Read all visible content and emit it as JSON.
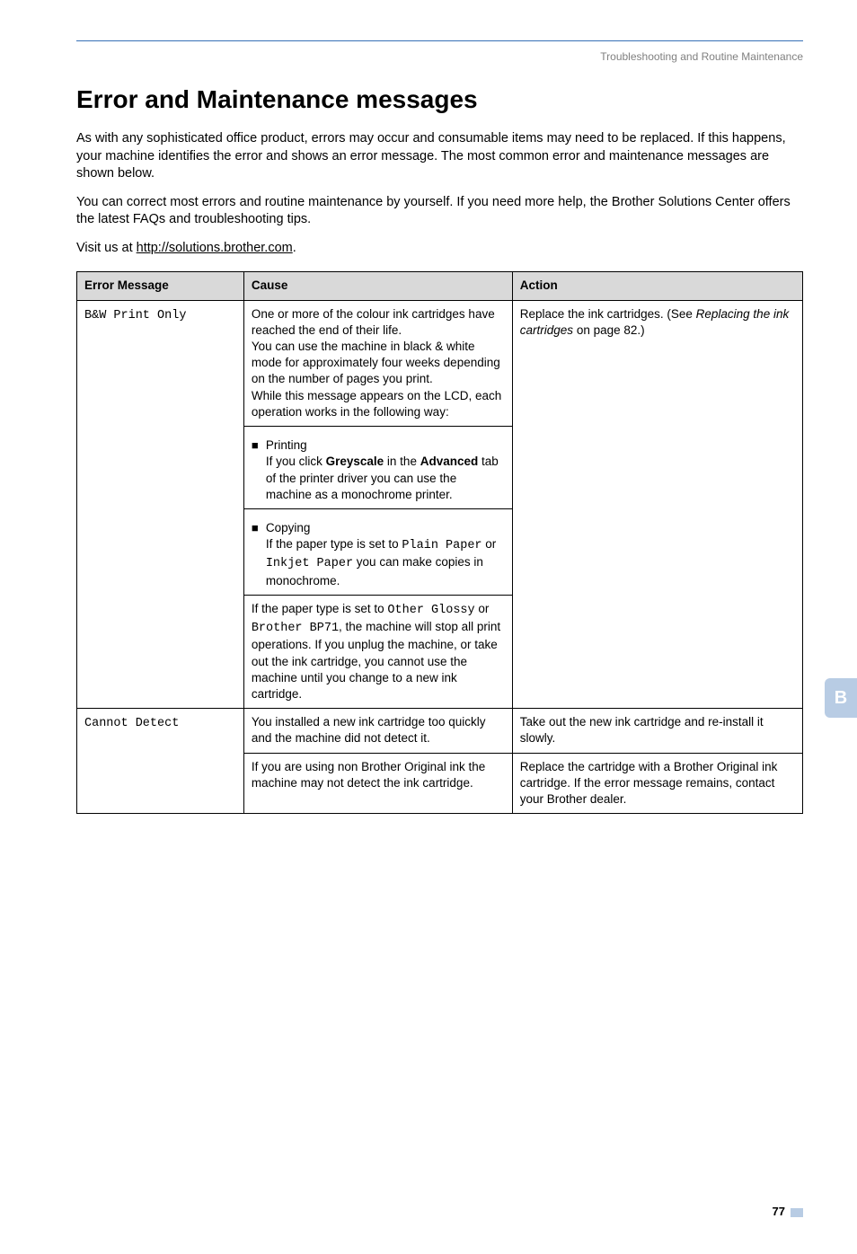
{
  "page": {
    "breadcrumb": "Troubleshooting and Routine Maintenance",
    "heading": "Error and Maintenance messages",
    "intro": {
      "p1": "As with any sophisticated office product, errors may occur and consumable items may need to be replaced. If this happens, your machine identifies the error and shows an error message. The most common error and maintenance messages are shown below.",
      "p2": "You can correct most errors and routine maintenance by yourself. If you need more help, the Brother Solutions Center offers the latest FAQs and troubleshooting tips.",
      "p3_prefix": "Visit us at ",
      "p3_link": "http://solutions.brother.com",
      "p3_suffix": "."
    },
    "side_tab": "B",
    "page_number": "77"
  },
  "table": {
    "headers": {
      "err": "Error Message",
      "cause": "Cause",
      "action": "Action"
    },
    "rows": [
      {
        "err": "B&W Print Only",
        "cause": {
          "para1": "One or more of the colour ink cartridges have reached the end of their life.",
          "para2": "You can use the machine in black & white mode for approximately four weeks depending on the number of pages you print.",
          "para3": "While this message appears on the LCD, each operation works in the following way:",
          "bullets": [
            {
              "title": "Printing",
              "body_pre": "If you click ",
              "body_b1": "Greyscale",
              "body_mid": " in the ",
              "body_b2": "Advanced",
              "body_post": " tab of the printer driver you can use the machine as a monochrome printer."
            },
            {
              "title": "Copying",
              "body_pre": "If the paper type is set to ",
              "mono1": "Plain Paper",
              "mid1": " or ",
              "mono2": "Inkjet Paper",
              "post": " you can make copies in monochrome."
            }
          ],
          "tail_pre": "If the paper type is set to ",
          "tail_m1": "Other Glossy",
          "tail_mid": " or ",
          "tail_m2": "Brother BP71",
          "tail_post": ", the machine will stop all print operations. If you unplug the machine, or take out the ink cartridge, you cannot use the machine until you change to a new ink cartridge."
        },
        "action": {
          "pre": "Replace the ink cartridges. (See ",
          "em": "Replacing the ink cartridges",
          "post": " on page 82.)"
        }
      },
      {
        "err": "Cannot Detect",
        "sub": [
          {
            "cause": "You installed a new ink cartridge too quickly and the machine did not detect it.",
            "action": "Take out the new ink cartridge and re-install it slowly."
          },
          {
            "cause": "If you are using non Brother Original ink the machine may not detect the ink cartridge.",
            "action": "Replace the cartridge with a Brother Original ink cartridge. If the error message remains, contact your Brother dealer."
          }
        ]
      }
    ]
  }
}
